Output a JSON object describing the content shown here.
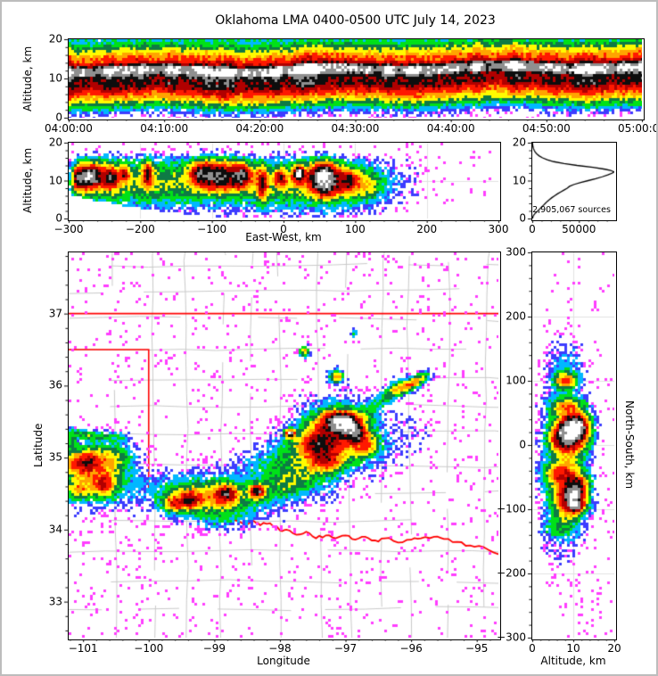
{
  "figure": {
    "title": "Oklahoma LMA 0400-0500 UTC July 14, 2023",
    "background": "#ffffff",
    "frame_color": "#bdbdbd",
    "axis_color": "#000000",
    "grid_color": "#e2e2e2",
    "county_line_color": "#c9c9c9",
    "state_border_color": "#ff0000"
  },
  "color_ramp": [
    "#ff3dff",
    "#3c3cff",
    "#00b8ff",
    "#00e118",
    "#0e7a45",
    "#fffb00",
    "#ffa400",
    "#ff1900",
    "#b00000",
    "#0d0d0d",
    "#8f8f8f",
    "#ffffff"
  ],
  "chart_data": [
    {
      "id": "time_height",
      "type": "heatmap",
      "xlabel": "",
      "ylabel": "Altitude, km",
      "x_ticks": [
        "04:00:00",
        "04:10:00",
        "04:20:00",
        "04:30:00",
        "04:40:00",
        "04:50:00",
        "05:00:00"
      ],
      "x_minor_per_major": 5,
      "ylim": [
        0,
        20
      ],
      "y_ticks": [
        {
          "v": 0,
          "label": "0"
        },
        {
          "v": 10,
          "label": "10"
        },
        {
          "v": 20,
          "label": "20"
        }
      ],
      "y_minor_step": 2,
      "altitude_intensity_profile": [
        [
          20,
          0.24
        ],
        [
          19,
          0.3
        ],
        [
          18,
          0.4
        ],
        [
          17,
          0.48
        ],
        [
          16,
          0.57
        ],
        [
          15,
          0.62
        ],
        [
          14.4,
          0.68
        ],
        [
          13.9,
          0.78
        ],
        [
          13.4,
          0.9
        ],
        [
          12.2,
          0.93
        ],
        [
          11.6,
          0.89
        ],
        [
          11.0,
          0.8
        ],
        [
          10,
          0.76
        ],
        [
          9,
          0.77
        ],
        [
          8,
          0.7
        ],
        [
          7,
          0.63
        ],
        [
          6,
          0.54
        ],
        [
          5,
          0.46
        ],
        [
          4.2,
          0.36
        ],
        [
          3.4,
          0.27
        ],
        [
          2.6,
          0.19
        ],
        [
          1.8,
          0.12
        ],
        [
          1.0,
          0.06
        ],
        [
          0.3,
          0.03
        ],
        [
          0,
          0.015
        ]
      ]
    },
    {
      "id": "east_west_cross_section",
      "type": "heatmap",
      "xlabel": "East-West, km",
      "ylabel": "Altitude, km",
      "xlim": [
        -300,
        300
      ],
      "x_ticks": [
        {
          "v": -300,
          "label": "−300"
        },
        {
          "v": -200,
          "label": "−200"
        },
        {
          "v": -100,
          "label": "−100"
        },
        {
          "v": 0,
          "label": "0"
        },
        {
          "v": 100,
          "label": "100"
        },
        {
          "v": 200,
          "label": "200"
        },
        {
          "v": 300,
          "label": "300"
        }
      ],
      "x_minor_step": 20,
      "ylim": [
        0,
        20
      ],
      "y_ticks": [
        {
          "v": 0,
          "label": "0"
        },
        {
          "v": 10,
          "label": "10"
        },
        {
          "v": 20,
          "label": "20"
        }
      ],
      "y_minor_step": 2,
      "grid_x": [
        -200,
        -100,
        0,
        100,
        200
      ],
      "grid_y": [
        10
      ],
      "cells": [
        [
          -80,
          9.5,
          140,
          4.5,
          0.3
        ],
        [
          -200,
          10,
          70,
          4.5,
          0.26
        ],
        [
          50,
          9,
          60,
          4.5,
          0.3
        ],
        [
          -270,
          11,
          26,
          3.2,
          0.5
        ],
        [
          -268,
          11.5,
          11,
          1.8,
          0.78
        ],
        [
          -285,
          10.5,
          8,
          2.0,
          0.65
        ],
        [
          -240,
          11,
          7,
          2.0,
          0.68
        ],
        [
          -222,
          12,
          4.5,
          1.4,
          0.6
        ],
        [
          -190,
          12,
          5.5,
          2.4,
          0.62
        ],
        [
          -115,
          12,
          13,
          2.4,
          0.72
        ],
        [
          -90,
          11.5,
          16,
          2.8,
          0.76
        ],
        [
          -60,
          11.5,
          13,
          2.4,
          0.78
        ],
        [
          -30,
          9.5,
          5.5,
          3.2,
          0.68
        ],
        [
          -5,
          11,
          7,
          1.8,
          0.58
        ],
        [
          20,
          12,
          6,
          1.6,
          0.95
        ],
        [
          55,
          11.5,
          15,
          2.6,
          0.97
        ],
        [
          57,
          9,
          12,
          2.2,
          0.75
        ],
        [
          90,
          10,
          11,
          2.4,
          0.68
        ],
        [
          120,
          9,
          13,
          2.8,
          0.34
        ],
        [
          155,
          10,
          22,
          3.5,
          0.14
        ],
        [
          190,
          10,
          14,
          3.5,
          0.09
        ]
      ]
    },
    {
      "id": "altitude_histogram",
      "type": "line",
      "annotation": "2,905,067 sources",
      "source_count": 2905067,
      "xlim": [
        0,
        88000
      ],
      "x_ticks": [
        {
          "v": 0,
          "label": "0"
        },
        {
          "v": 50000,
          "label": "50000"
        }
      ],
      "x_minor_step": 10000,
      "ylim": [
        0,
        20
      ],
      "y_ticks": [
        {
          "v": 0,
          "label": "0"
        },
        {
          "v": 10,
          "label": "10"
        },
        {
          "v": 20,
          "label": "20"
        }
      ],
      "y_minor_step": 2,
      "points_alt_count": [
        [
          0,
          300
        ],
        [
          0.5,
          700
        ],
        [
          1,
          1800
        ],
        [
          1.5,
          3500
        ],
        [
          2,
          6000
        ],
        [
          2.5,
          8000
        ],
        [
          3,
          10000
        ],
        [
          3.5,
          12000
        ],
        [
          4,
          14000
        ],
        [
          4.5,
          16000
        ],
        [
          5,
          18500
        ],
        [
          5.5,
          21000
        ],
        [
          6,
          24000
        ],
        [
          6.5,
          27000
        ],
        [
          7,
          30500
        ],
        [
          7.5,
          34000
        ],
        [
          8,
          37500
        ],
        [
          8.5,
          40000
        ],
        [
          9,
          45000
        ],
        [
          9.5,
          52000
        ],
        [
          10,
          60000
        ],
        [
          10.5,
          68000
        ],
        [
          11,
          75000
        ],
        [
          11.5,
          81000
        ],
        [
          12,
          86000
        ],
        [
          12.3,
          87500
        ],
        [
          12.7,
          84000
        ],
        [
          13,
          78000
        ],
        [
          13.5,
          65000
        ],
        [
          14,
          48000
        ],
        [
          14.5,
          34000
        ],
        [
          15,
          23000
        ],
        [
          15.5,
          16000
        ],
        [
          16,
          11000
        ],
        [
          16.5,
          7500
        ],
        [
          17,
          5000
        ],
        [
          17.5,
          3200
        ],
        [
          18,
          2000
        ],
        [
          18.5,
          1200
        ],
        [
          19,
          700
        ],
        [
          19.5,
          400
        ],
        [
          20,
          250
        ]
      ]
    },
    {
      "id": "plan_view_map",
      "type": "heatmap",
      "xlabel": "Longitude",
      "ylabel": "Latitude",
      "xlim": [
        -101.22,
        -94.67
      ],
      "x_ticks": [
        {
          "v": -101,
          "label": "−101"
        },
        {
          "v": -100,
          "label": "−100"
        },
        {
          "v": -99,
          "label": "−99"
        },
        {
          "v": -98,
          "label": "−98"
        },
        {
          "v": -97,
          "label": "−97"
        },
        {
          "v": -96,
          "label": "−96"
        },
        {
          "v": -95,
          "label": "−95"
        }
      ],
      "x_minor_step": 0.2,
      "ylim": [
        32.5,
        37.85
      ],
      "y_ticks": [
        {
          "v": 33,
          "label": "33"
        },
        {
          "v": 34,
          "label": "34"
        },
        {
          "v": 35,
          "label": "35"
        },
        {
          "v": 36,
          "label": "36"
        },
        {
          "v": 37,
          "label": "37"
        }
      ],
      "y_minor_step": 0.2,
      "state_borders": [
        [
          [
            -101.22,
            37
          ],
          [
            -94.67,
            37
          ]
        ],
        [
          [
            -101.22,
            36.5
          ],
          [
            -100.0,
            36.5
          ],
          [
            -100.0,
            34.56
          ]
        ]
      ],
      "red_river": [
        [
          -100.0,
          34.56
        ],
        [
          -99.8,
          34.45
        ],
        [
          -99.6,
          34.4
        ],
        [
          -99.45,
          34.38
        ],
        [
          -99.3,
          34.23
        ],
        [
          -99.2,
          34.21
        ],
        [
          -99.05,
          34.2
        ],
        [
          -98.95,
          34.15
        ],
        [
          -98.8,
          34.13
        ],
        [
          -98.65,
          34.12
        ],
        [
          -98.5,
          34.07
        ],
        [
          -98.4,
          34.12
        ],
        [
          -98.3,
          34.06
        ],
        [
          -98.15,
          34.09
        ],
        [
          -98.0,
          33.99
        ],
        [
          -97.9,
          34.0
        ],
        [
          -97.75,
          33.93
        ],
        [
          -97.6,
          33.97
        ],
        [
          -97.45,
          33.88
        ],
        [
          -97.3,
          33.92
        ],
        [
          -97.15,
          33.88
        ],
        [
          -97.0,
          33.92
        ],
        [
          -96.85,
          33.86
        ],
        [
          -96.7,
          33.9
        ],
        [
          -96.55,
          33.85
        ],
        [
          -96.4,
          33.88
        ],
        [
          -96.2,
          33.82
        ],
        [
          -96.0,
          33.86
        ],
        [
          -95.85,
          33.88
        ],
        [
          -95.65,
          33.9
        ],
        [
          -95.5,
          33.87
        ],
        [
          -95.3,
          33.83
        ],
        [
          -95.1,
          33.78
        ],
        [
          -94.9,
          33.76
        ],
        [
          -94.67,
          33.66
        ]
      ],
      "cells": [
        [
          -100.78,
          34.78,
          0.36,
          0.28,
          0.5,
          0
        ],
        [
          -100.92,
          34.95,
          0.13,
          0.1,
          0.48,
          0
        ],
        [
          -100.68,
          34.62,
          0.12,
          0.1,
          0.48,
          0
        ],
        [
          -101.08,
          34.55,
          0.12,
          0.09,
          0.42,
          0
        ],
        [
          -101.12,
          34.92,
          0.16,
          0.13,
          0.4,
          0
        ],
        [
          -100.55,
          35.02,
          0.22,
          0.12,
          0.26,
          0
        ],
        [
          -101.0,
          35.33,
          0.16,
          0.045,
          0.3,
          -10
        ],
        [
          -100.7,
          35.3,
          0.18,
          0.04,
          0.24,
          5
        ],
        [
          -101.17,
          35.24,
          0.05,
          0.09,
          0.33,
          0
        ],
        [
          -100.42,
          35.27,
          0.09,
          0.04,
          0.16,
          0
        ],
        [
          -99.1,
          34.45,
          0.6,
          0.2,
          0.52,
          -4
        ],
        [
          -99.38,
          34.4,
          0.11,
          0.08,
          0.65,
          0
        ],
        [
          -98.82,
          34.5,
          0.12,
          0.09,
          0.68,
          0
        ],
        [
          -98.35,
          34.53,
          0.09,
          0.07,
          0.78,
          0
        ],
        [
          -99.62,
          34.36,
          0.11,
          0.08,
          0.55,
          0
        ],
        [
          -97.95,
          34.62,
          0.28,
          0.16,
          0.3,
          0
        ],
        [
          -97.6,
          34.78,
          0.24,
          0.18,
          0.24,
          0
        ],
        [
          -98.9,
          34.12,
          0.3,
          0.1,
          0.13,
          0
        ],
        [
          -98.35,
          34.88,
          0.33,
          0.18,
          0.15,
          0
        ],
        [
          -97.9,
          35.02,
          0.28,
          0.18,
          0.2,
          0
        ],
        [
          -97.15,
          35.28,
          0.42,
          0.3,
          0.62,
          0
        ],
        [
          -97.1,
          35.5,
          0.2,
          0.11,
          0.95,
          0
        ],
        [
          -96.95,
          35.44,
          0.11,
          0.08,
          0.85,
          0
        ],
        [
          -97.45,
          35.18,
          0.19,
          0.13,
          0.62,
          0
        ],
        [
          -96.85,
          35.33,
          0.11,
          0.09,
          0.66,
          0
        ],
        [
          -97.85,
          35.33,
          0.055,
          0.045,
          0.92,
          0
        ],
        [
          -97.3,
          34.95,
          0.18,
          0.11,
          0.48,
          0
        ],
        [
          -96.7,
          35.18,
          0.14,
          0.11,
          0.4,
          0
        ],
        [
          -96.55,
          35.72,
          0.22,
          0.09,
          0.22,
          38
        ],
        [
          -96.28,
          35.95,
          0.14,
          0.07,
          0.28,
          38
        ],
        [
          -96.05,
          36.0,
          0.19,
          0.065,
          0.58,
          25
        ],
        [
          -95.86,
          36.1,
          0.1,
          0.05,
          0.28,
          25
        ],
        [
          -97.15,
          36.12,
          0.075,
          0.065,
          0.62,
          0
        ],
        [
          -97.63,
          36.47,
          0.065,
          0.055,
          0.52,
          0
        ],
        [
          -96.88,
          36.72,
          0.05,
          0.04,
          0.33,
          0
        ],
        [
          -95.95,
          35.4,
          0.3,
          0.18,
          0.07,
          0
        ],
        [
          -96.35,
          35.05,
          0.25,
          0.15,
          0.07,
          0
        ],
        [
          -97.2,
          34.55,
          0.12,
          0.28,
          0.09,
          0
        ]
      ]
    },
    {
      "id": "north_south_cross_section",
      "type": "heatmap",
      "xlabel": "Altitude, km",
      "ylabel": "North-South, km",
      "xlim": [
        0,
        20
      ],
      "x_ticks": [
        {
          "v": 0,
          "label": "0"
        },
        {
          "v": 10,
          "label": "10"
        },
        {
          "v": 20,
          "label": "20"
        }
      ],
      "x_minor_step": 2,
      "ylim": [
        -300,
        300
      ],
      "y_ticks": [
        {
          "v": 300,
          "label": "300"
        },
        {
          "v": 200,
          "label": "200"
        },
        {
          "v": 100,
          "label": "100"
        },
        {
          "v": 0,
          "label": "0"
        },
        {
          "v": -100,
          "label": "−100"
        },
        {
          "v": -200,
          "label": "−200"
        },
        {
          "v": -300,
          "label": "−300"
        }
      ],
      "y_minor_step": 20,
      "grid_x": [
        10
      ],
      "grid_y": [
        -200,
        -100,
        0,
        100,
        200
      ],
      "cells": [
        [
          8,
          -10,
          4,
          85,
          0.28
        ],
        [
          10,
          20,
          3,
          26,
          0.55
        ],
        [
          10.5,
          28,
          2.1,
          13,
          1.0
        ],
        [
          8.5,
          18,
          2.3,
          11,
          0.8
        ],
        [
          7.5,
          5,
          2.5,
          12,
          0.55
        ],
        [
          9,
          -85,
          3,
          23,
          0.65
        ],
        [
          10,
          -78,
          1.7,
          9,
          0.95
        ],
        [
          10.5,
          -95,
          1.5,
          7,
          0.8
        ],
        [
          7,
          -45,
          3,
          14,
          0.52
        ],
        [
          11,
          -60,
          2,
          10,
          0.55
        ],
        [
          8,
          60,
          2.8,
          10,
          0.4
        ],
        [
          8,
          100,
          2.0,
          9,
          0.6
        ],
        [
          8,
          130,
          2.8,
          16,
          0.18
        ],
        [
          6,
          -130,
          2.8,
          13,
          0.22
        ],
        [
          9,
          155,
          3.5,
          14,
          0.09
        ],
        [
          7,
          -165,
          3.5,
          18,
          0.09
        ]
      ]
    }
  ]
}
